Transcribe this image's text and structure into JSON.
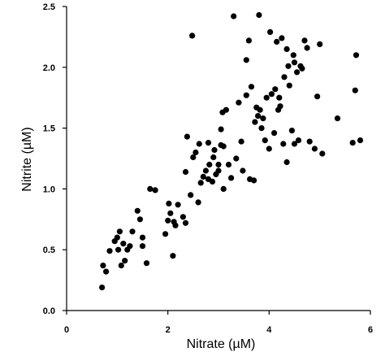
{
  "chart_data": {
    "type": "scatter",
    "title": "",
    "xlabel": "Nitrate (µM)",
    "ylabel": "Nitrite (µM)",
    "xlim": [
      0,
      6
    ],
    "ylim": [
      0,
      2.5
    ],
    "x_ticks": [
      0,
      2,
      4,
      6
    ],
    "y_ticks": [
      0,
      0.5,
      1.0,
      1.5,
      2.0,
      2.5
    ],
    "x_tick_labels": [
      "0",
      "2",
      "4",
      "6"
    ],
    "y_tick_labels": [
      "0.0",
      "0.5",
      "1.0",
      "1.5",
      "2.0",
      "2.5"
    ],
    "grid": false,
    "marker_color": "#000000",
    "points": [
      [
        0.7,
        0.19
      ],
      [
        0.72,
        0.37
      ],
      [
        0.78,
        0.32
      ],
      [
        0.85,
        0.49
      ],
      [
        0.95,
        0.57
      ],
      [
        1.0,
        0.6
      ],
      [
        1.02,
        0.5
      ],
      [
        1.05,
        0.65
      ],
      [
        1.08,
        0.37
      ],
      [
        1.12,
        0.55
      ],
      [
        1.15,
        0.41
      ],
      [
        1.2,
        0.5
      ],
      [
        1.25,
        0.53
      ],
      [
        1.3,
        0.65
      ],
      [
        1.4,
        0.82
      ],
      [
        1.45,
        0.75
      ],
      [
        1.5,
        0.6
      ],
      [
        1.5,
        0.53
      ],
      [
        1.58,
        0.39
      ],
      [
        1.65,
        1.0
      ],
      [
        1.75,
        0.99
      ],
      [
        1.95,
        0.63
      ],
      [
        2.0,
        0.74
      ],
      [
        2.02,
        0.88
      ],
      [
        2.05,
        0.8
      ],
      [
        2.1,
        0.45
      ],
      [
        2.12,
        0.73
      ],
      [
        2.15,
        0.7
      ],
      [
        2.2,
        0.87
      ],
      [
        2.3,
        0.77
      ],
      [
        2.35,
        1.14
      ],
      [
        2.35,
        0.72
      ],
      [
        2.38,
        1.43
      ],
      [
        2.45,
        0.95
      ],
      [
        2.48,
        2.26
      ],
      [
        2.5,
        1.26
      ],
      [
        2.55,
        1.3
      ],
      [
        2.6,
        0.89
      ],
      [
        2.62,
        1.37
      ],
      [
        2.65,
        1.05
      ],
      [
        2.7,
        1.1
      ],
      [
        2.75,
        1.15
      ],
      [
        2.8,
        1.08
      ],
      [
        2.8,
        1.38
      ],
      [
        2.82,
        1.2
      ],
      [
        2.88,
        1.06
      ],
      [
        2.9,
        1.26
      ],
      [
        2.92,
        1.32
      ],
      [
        2.95,
        1.12
      ],
      [
        3.0,
        1.15
      ],
      [
        3.0,
        1.2
      ],
      [
        3.05,
        1.36
      ],
      [
        3.05,
        1.49
      ],
      [
        3.08,
        1.63
      ],
      [
        3.1,
        1.0
      ],
      [
        3.1,
        1.35
      ],
      [
        3.15,
        1.65
      ],
      [
        3.2,
        1.2
      ],
      [
        3.25,
        1.09
      ],
      [
        3.3,
        2.42
      ],
      [
        3.35,
        1.25
      ],
      [
        3.4,
        1.71
      ],
      [
        3.45,
        1.39
      ],
      [
        3.48,
        1.15
      ],
      [
        3.55,
        1.77
      ],
      [
        3.55,
        2.06
      ],
      [
        3.6,
        2.22
      ],
      [
        3.62,
        1.08
      ],
      [
        3.65,
        1.84
      ],
      [
        3.7,
        1.07
      ],
      [
        3.72,
        1.55
      ],
      [
        3.75,
        1.67
      ],
      [
        3.78,
        1.6
      ],
      [
        3.8,
        2.43
      ],
      [
        3.82,
        1.65
      ],
      [
        3.85,
        1.5
      ],
      [
        3.88,
        1.58
      ],
      [
        3.92,
        1.4
      ],
      [
        3.95,
        1.75
      ],
      [
        4.0,
        1.33
      ],
      [
        4.02,
        2.29
      ],
      [
        4.05,
        1.78
      ],
      [
        4.1,
        1.46
      ],
      [
        4.12,
        1.82
      ],
      [
        4.15,
        2.21
      ],
      [
        4.18,
        1.65
      ],
      [
        4.2,
        1.75
      ],
      [
        4.22,
        1.68
      ],
      [
        4.25,
        2.24
      ],
      [
        4.28,
        1.37
      ],
      [
        4.3,
        1.92
      ],
      [
        4.35,
        1.22
      ],
      [
        4.35,
        2.15
      ],
      [
        4.38,
        2.01
      ],
      [
        4.4,
        1.85
      ],
      [
        4.45,
        1.48
      ],
      [
        4.48,
        2.1
      ],
      [
        4.5,
        2.04
      ],
      [
        4.5,
        1.37
      ],
      [
        4.55,
        1.96
      ],
      [
        4.58,
        1.4
      ],
      [
        4.62,
        2.01
      ],
      [
        4.65,
        1.99
      ],
      [
        4.7,
        2.22
      ],
      [
        4.75,
        2.16
      ],
      [
        4.8,
        1.39
      ],
      [
        4.9,
        1.33
      ],
      [
        4.95,
        1.76
      ],
      [
        5.0,
        2.19
      ],
      [
        5.05,
        1.29
      ],
      [
        5.35,
        1.58
      ],
      [
        5.65,
        1.38
      ],
      [
        5.7,
        1.81
      ],
      [
        5.72,
        2.1
      ],
      [
        5.8,
        1.4
      ]
    ]
  }
}
